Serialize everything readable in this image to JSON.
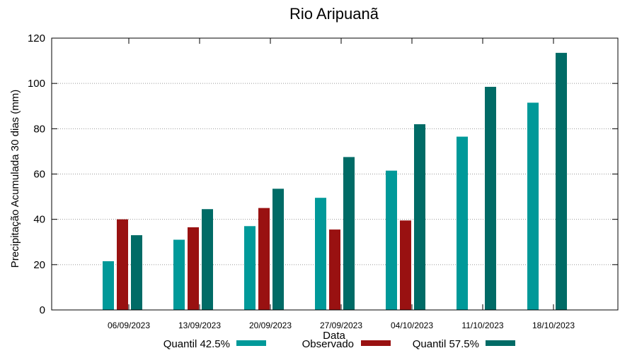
{
  "chart_data": {
    "type": "bar",
    "title": "Rio Aripuanã",
    "xlabel": "Data",
    "ylabel": "Precipitação Acumulada 30 dias (mm)",
    "ylim": [
      0,
      120
    ],
    "yticks": [
      "0",
      "20",
      "40",
      "60",
      "80",
      "100",
      "120"
    ],
    "grid": true,
    "legend_position": "bottom",
    "categories": [
      "06/09/2023",
      "13/09/2023",
      "20/09/2023",
      "27/09/2023",
      "04/10/2023",
      "11/10/2023",
      "18/10/2023"
    ],
    "series": [
      {
        "name": "Quantil 42.5%",
        "color": "#009999",
        "values": [
          21.5,
          31,
          37,
          49.5,
          61.5,
          76.5,
          91.5
        ]
      },
      {
        "name": "Observado",
        "color": "#991111",
        "values": [
          40,
          36.5,
          45,
          35.5,
          39.5,
          null,
          null
        ]
      },
      {
        "name": "Quantil 57.5%",
        "color": "#006b66",
        "values": [
          33,
          44.5,
          53.5,
          67.5,
          82,
          98.5,
          113.5
        ]
      }
    ]
  }
}
